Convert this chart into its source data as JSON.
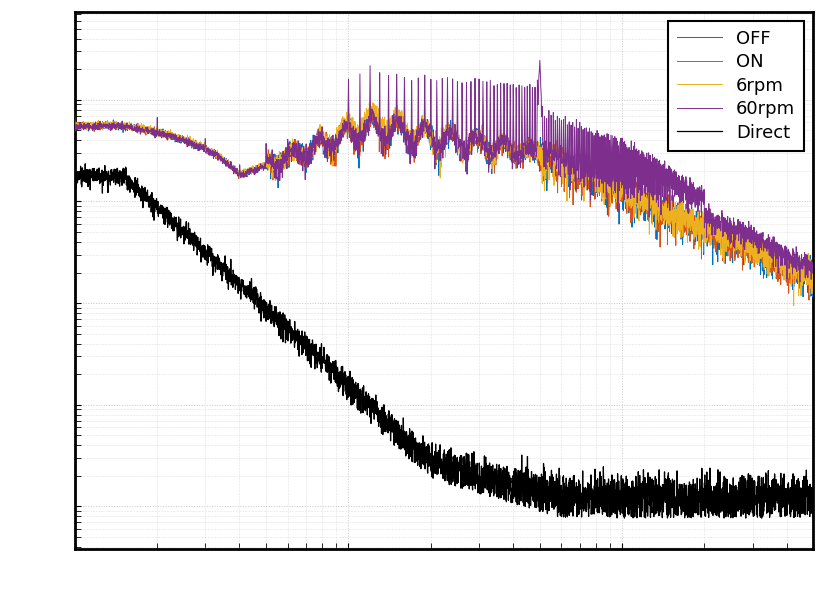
{
  "series": {
    "OFF": {
      "color": "#0072BD",
      "zorder": 4,
      "lw": 0.7
    },
    "ON": {
      "color": "#D95319",
      "zorder": 4,
      "lw": 0.7
    },
    "6rpm": {
      "color": "#EDB120",
      "zorder": 4,
      "lw": 0.7
    },
    "60rpm": {
      "color": "#7E2F8E",
      "zorder": 5,
      "lw": 0.7
    },
    "Direct": {
      "color": "#000000",
      "zorder": 3,
      "lw": 0.9
    }
  },
  "legend_order": [
    "OFF",
    "ON",
    "6rpm",
    "60rpm",
    "Direct"
  ],
  "background": "#ffffff",
  "grid_color": "#c8c8c8",
  "border_color": "#000000",
  "border_lw": 2.0,
  "legend_fontsize": 13,
  "fig_width": 8.3,
  "fig_height": 5.9,
  "dpi": 100
}
